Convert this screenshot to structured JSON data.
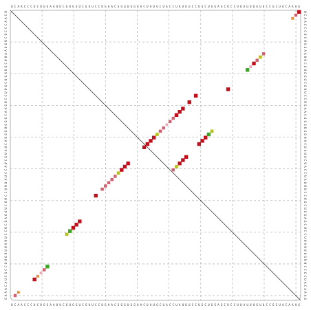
{
  "sequence": "UCAACCCUCUGGAAUUCGUGGUCGUUCCUGAACGGGUGGUACUAUGCUACCUAUUUCCUGCUGGAGCUCCUUAUUUGUUCCGCUACAAAG",
  "grid_divisions": 9,
  "colors": {
    "frame": "#b0b0b0",
    "grid": "#b8b8b8",
    "diagonal": "#222222",
    "prob_high": "#c0101c",
    "prob_mid": "#d06070",
    "prob_low": "#e8a8b4",
    "prob_green": "#3aa820",
    "prob_yellow": "#b8c020",
    "prob_orange": "#e09040"
  },
  "pairs_upper": [
    {
      "i": 1,
      "j": 90,
      "level": "high"
    },
    {
      "i": 2,
      "j": 89,
      "level": "mid"
    },
    {
      "i": 3,
      "j": 88,
      "level": "orange"
    },
    {
      "i": 14,
      "j": 79,
      "level": "mid"
    },
    {
      "i": 15,
      "j": 78,
      "level": "yellow"
    },
    {
      "i": 16,
      "j": 77,
      "level": "mid"
    },
    {
      "i": 17,
      "j": 76,
      "level": "high"
    },
    {
      "i": 18,
      "j": 75,
      "level": "low"
    },
    {
      "i": 19,
      "j": 74,
      "level": "green"
    },
    {
      "i": 25,
      "j": 68,
      "level": "high"
    },
    {
      "i": 38,
      "j": 63,
      "level": "yellow"
    },
    {
      "i": 39,
      "j": 62,
      "level": "green"
    },
    {
      "i": 40,
      "j": 61,
      "level": "high"
    },
    {
      "i": 41,
      "j": 60,
      "level": "high"
    },
    {
      "i": 42,
      "j": 59,
      "level": "high"
    },
    {
      "i": 46,
      "j": 55,
      "level": "high"
    },
    {
      "i": 47,
      "j": 54,
      "level": "high"
    },
    {
      "i": 48,
      "j": 53,
      "level": "high"
    },
    {
      "i": 49,
      "j": 52,
      "level": "yellow"
    },
    {
      "i": 50,
      "j": 51,
      "level": "mid"
    }
  ],
  "pairs_lower": [
    {
      "i": 2,
      "j": 89,
      "level": "mid"
    },
    {
      "i": 3,
      "j": 88,
      "level": "orange"
    },
    {
      "i": 8,
      "j": 84,
      "level": "high"
    },
    {
      "i": 9,
      "j": 83,
      "level": "orange"
    },
    {
      "i": 10,
      "j": 82,
      "level": "low"
    },
    {
      "i": 11,
      "j": 81,
      "level": "mid"
    },
    {
      "i": 12,
      "j": 80,
      "level": "green"
    },
    {
      "i": 18,
      "j": 70,
      "level": "yellow"
    },
    {
      "i": 19,
      "j": 69,
      "level": "green"
    },
    {
      "i": 20,
      "j": 68,
      "level": "high"
    },
    {
      "i": 21,
      "j": 67,
      "level": "high"
    },
    {
      "i": 22,
      "j": 66,
      "level": "high"
    },
    {
      "i": 27,
      "j": 58,
      "level": "high"
    },
    {
      "i": 29,
      "j": 56,
      "level": "mid"
    },
    {
      "i": 30,
      "j": 55,
      "level": "mid"
    },
    {
      "i": 31,
      "j": 54,
      "level": "mid"
    },
    {
      "i": 32,
      "j": 53,
      "level": "mid"
    },
    {
      "i": 33,
      "j": 52,
      "level": "mid"
    },
    {
      "i": 34,
      "j": 51,
      "level": "yellow"
    },
    {
      "i": 35,
      "j": 50,
      "level": "high"
    },
    {
      "i": 36,
      "j": 49,
      "level": "high"
    },
    {
      "i": 37,
      "j": 48,
      "level": "high"
    },
    {
      "i": 42,
      "j": 43,
      "level": "high"
    },
    {
      "i": 43,
      "j": 42,
      "level": "high"
    },
    {
      "i": 44,
      "j": 41,
      "level": "high"
    },
    {
      "i": 45,
      "j": 40,
      "level": "high"
    },
    {
      "i": 46,
      "j": 39,
      "level": "yellow"
    },
    {
      "i": 47,
      "j": 38,
      "level": "mid"
    },
    {
      "i": 48,
      "j": 37,
      "level": "mid"
    },
    {
      "i": 49,
      "j": 36,
      "level": "low"
    },
    {
      "i": 50,
      "j": 35,
      "level": "mid"
    },
    {
      "i": 51,
      "j": 34,
      "level": "mid"
    },
    {
      "i": 52,
      "j": 33,
      "level": "high"
    },
    {
      "i": 53,
      "j": 32,
      "level": "high"
    },
    {
      "i": 54,
      "j": 31,
      "level": "high"
    },
    {
      "i": 56,
      "j": 29,
      "level": "high"
    },
    {
      "i": 58,
      "j": 27,
      "level": "high"
    }
  ]
}
